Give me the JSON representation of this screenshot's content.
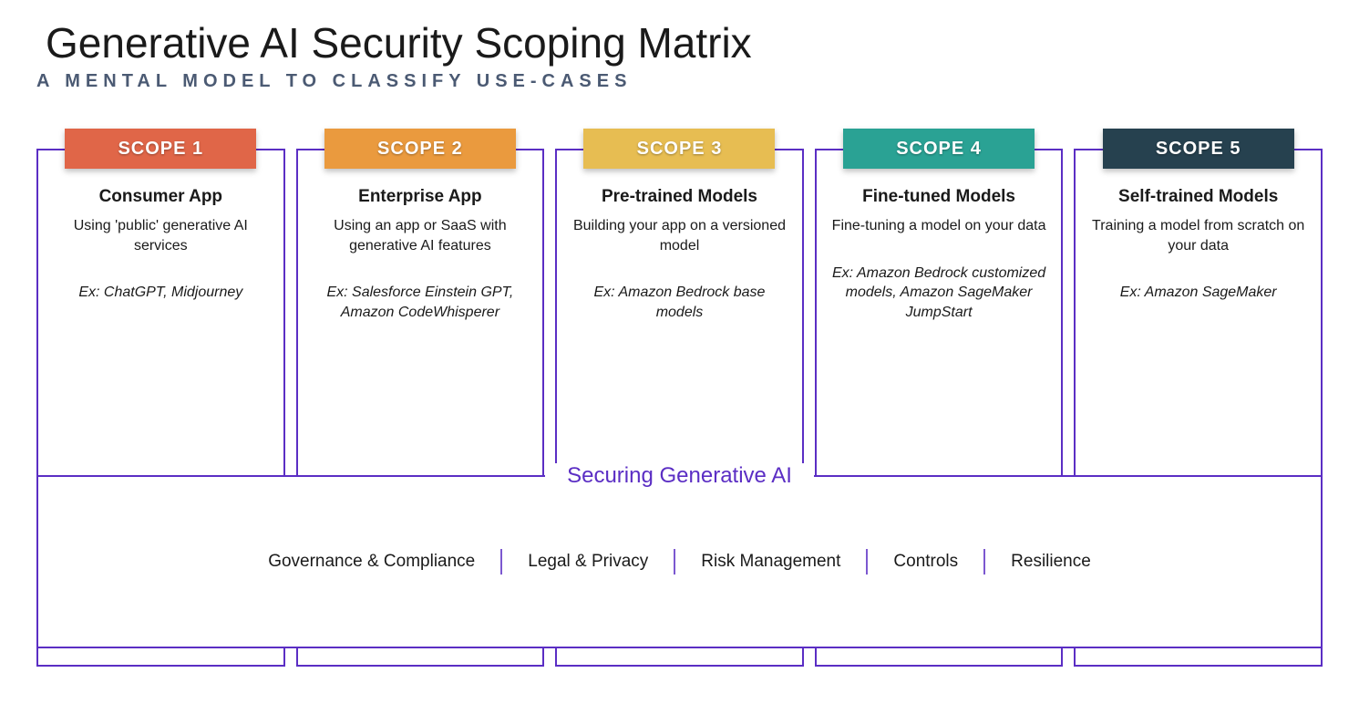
{
  "title": "Generative AI Security Scoping Matrix",
  "subtitle": "A MENTAL MODEL TO CLASSIFY USE-CASES",
  "colors": {
    "border": "#5b2ec4",
    "subtitle": "#4b5a73",
    "background": "#ffffff",
    "text": "#1a1a1a"
  },
  "scopes": [
    {
      "badge": "SCOPE 1",
      "badge_color": "#e06648",
      "heading": "Consumer App",
      "desc": "Using 'public' generative AI services",
      "example": "Ex: ChatGPT, Midjourney"
    },
    {
      "badge": "SCOPE 2",
      "badge_color": "#ea9a3e",
      "heading": "Enterprise App",
      "desc": "Using an app or SaaS with generative AI features",
      "example": "Ex: Salesforce Einstein GPT, Amazon CodeWhisperer"
    },
    {
      "badge": "SCOPE 3",
      "badge_color": "#e7bd52",
      "heading": "Pre-trained Models",
      "desc": "Building your app on a versioned model",
      "example": "Ex: Amazon Bedrock base models"
    },
    {
      "badge": "SCOPE 4",
      "badge_color": "#2aa294",
      "heading": "Fine-tuned Models",
      "desc": "Fine-tuning a model on your data",
      "example": "Ex: Amazon Bedrock customized models, Amazon SageMaker JumpStart"
    },
    {
      "badge": "SCOPE 5",
      "badge_color": "#26414f",
      "heading": "Self-trained Models",
      "desc": "Training a model from scratch on your data",
      "example": "Ex: Amazon SageMaker"
    }
  ],
  "secure_label": "Securing Generative AI",
  "pillars": [
    "Governance & Compliance",
    "Legal & Privacy",
    "Risk Management",
    "Controls",
    "Resilience"
  ]
}
